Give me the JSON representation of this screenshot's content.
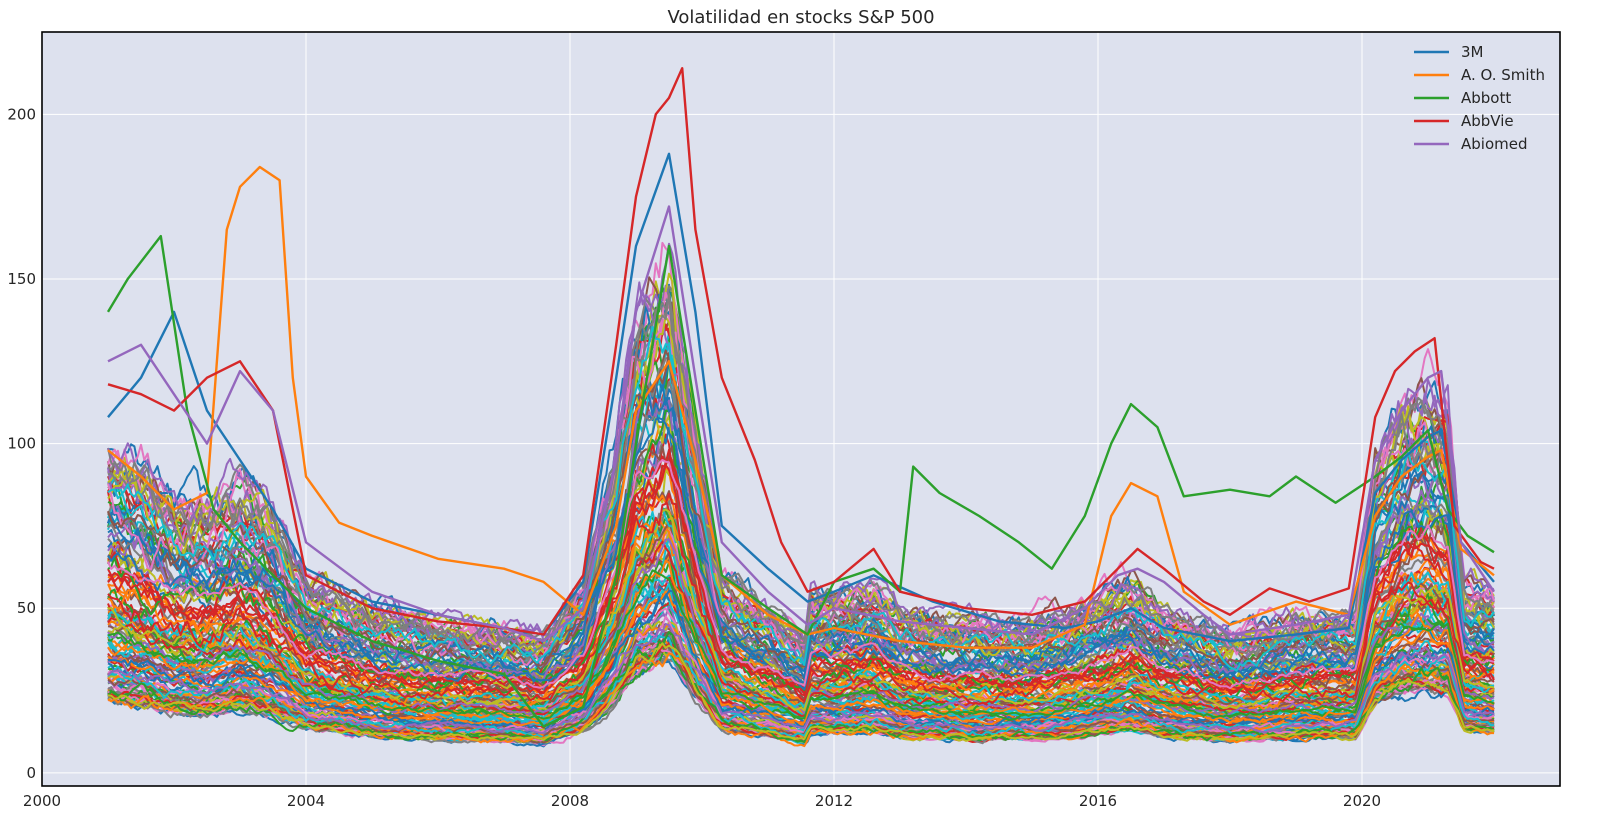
{
  "chart_data": {
    "type": "line",
    "title": "Volatilidad en stocks S&P 500",
    "xlabel": "",
    "ylabel": "",
    "xlim": [
      2000,
      2023
    ],
    "ylim": [
      -4,
      225
    ],
    "xticks": [
      2000,
      2004,
      2008,
      2012,
      2016,
      2020
    ],
    "xtick_labels": [
      "2000",
      "2004",
      "2008",
      "2012",
      "2016",
      "2020"
    ],
    "yticks": [
      0,
      50,
      100,
      150,
      200
    ],
    "ytick_labels": [
      "0",
      "50",
      "100",
      "150",
      "200"
    ],
    "grid": true,
    "legend_position": "top-right",
    "colors": {
      "plot_bg": "#dde1ee",
      "grid": "#ffffff",
      "frame": "#000000",
      "palette": [
        "#1f77b4",
        "#ff7f0e",
        "#2ca02c",
        "#d62728",
        "#9467bd",
        "#8c564b",
        "#e377c2",
        "#7f7f7f",
        "#bcbd22",
        "#17becf"
      ]
    },
    "series": [
      {
        "name": "3M",
        "color": "#1f77b4",
        "x": [
          2001.0,
          2001.5,
          2002.0,
          2002.5,
          2003.0,
          2003.5,
          2004.0,
          2005.0,
          2006.0,
          2007.0,
          2007.6,
          2008.2,
          2008.7,
          2009.0,
          2009.5,
          2009.9,
          2010.3,
          2011.0,
          2011.6,
          2012.0,
          2012.6,
          2013.5,
          2014.5,
          2015.5,
          2016.0,
          2016.5,
          2017.0,
          2018.0,
          2019.0,
          2019.8,
          2020.2,
          2020.6,
          2021.0,
          2021.2,
          2021.5,
          2022.0
        ],
        "y": [
          108.0,
          120.0,
          140.0,
          110.0,
          95.0,
          80.0,
          62.0,
          52.0,
          48.0,
          44.0,
          42.0,
          58.0,
          120.0,
          160.0,
          188.0,
          140.0,
          75.0,
          62.0,
          52.0,
          55.0,
          60.0,
          52.0,
          46.0,
          44.0,
          46.0,
          50.0,
          44.0,
          40.0,
          42.0,
          44.0,
          85.0,
          95.0,
          102.0,
          104.0,
          70.0,
          58.0
        ]
      },
      {
        "name": "A. O. Smith",
        "color": "#ff7f0e",
        "x": [
          2001.0,
          2001.5,
          2002.0,
          2002.5,
          2002.8,
          2003.0,
          2003.3,
          2003.6,
          2003.8,
          2004.0,
          2004.5,
          2005.0,
          2006.0,
          2007.0,
          2007.6,
          2008.2,
          2008.7,
          2009.0,
          2009.5,
          2009.9,
          2010.3,
          2011.0,
          2011.6,
          2012.0,
          2013.0,
          2014.0,
          2015.0,
          2015.8,
          2016.2,
          2016.5,
          2016.9,
          2017.3,
          2018.0,
          2019.0,
          2019.8,
          2020.2,
          2020.6,
          2021.0,
          2021.2,
          2021.5,
          2022.0
        ],
        "y": [
          98.0,
          90.0,
          80.0,
          85.0,
          165.0,
          178.0,
          184.0,
          180.0,
          120.0,
          90.0,
          76.0,
          72.0,
          65.0,
          62.0,
          58.0,
          48.0,
          75.0,
          110.0,
          125.0,
          95.0,
          60.0,
          48.0,
          42.0,
          44.0,
          40.0,
          38.0,
          38.0,
          45.0,
          78.0,
          88.0,
          84.0,
          55.0,
          45.0,
          52.0,
          48.0,
          78.0,
          90.0,
          96.0,
          98.0,
          68.0,
          60.0
        ]
      },
      {
        "name": "Abbott",
        "color": "#2ca02c",
        "x": [
          2001.0,
          2001.3,
          2001.8,
          2002.2,
          2002.6,
          2003.0,
          2003.5,
          2004.0,
          2005.0,
          2006.0,
          2007.0,
          2007.6,
          2008.2,
          2008.7,
          2009.0,
          2009.5,
          2009.9,
          2010.3,
          2011.0,
          2011.6,
          2012.0,
          2012.6,
          2013.0,
          2013.2,
          2013.6,
          2014.2,
          2014.8,
          2015.3,
          2015.8,
          2016.2,
          2016.5,
          2016.9,
          2017.3,
          2018.0,
          2018.6,
          2019.0,
          2019.6,
          2020.2,
          2020.6,
          2021.0,
          2021.3,
          2021.6,
          2022.0
        ],
        "y": [
          140.0,
          150.0,
          163.0,
          110.0,
          80.0,
          70.0,
          60.0,
          50.0,
          40.0,
          34.0,
          30.0,
          14.0,
          20.0,
          60.0,
          100.0,
          160.0,
          110.0,
          60.0,
          50.0,
          42.0,
          58.0,
          62.0,
          55.0,
          93.0,
          85.0,
          78.0,
          70.0,
          62.0,
          78.0,
          100.0,
          112.0,
          105.0,
          84.0,
          86.0,
          84.0,
          90.0,
          82.0,
          90.0,
          96.0,
          104.0,
          80.0,
          72.0,
          67.0
        ]
      },
      {
        "name": "AbbVie",
        "color": "#d62728",
        "x": [
          2001.0,
          2001.5,
          2002.0,
          2002.5,
          2003.0,
          2003.5,
          2004.0,
          2005.0,
          2006.0,
          2007.0,
          2007.6,
          2008.2,
          2008.7,
          2009.0,
          2009.3,
          2009.5,
          2009.7,
          2009.9,
          2010.3,
          2010.8,
          2011.2,
          2011.6,
          2012.0,
          2012.6,
          2013.0,
          2014.0,
          2015.0,
          2015.8,
          2016.2,
          2016.6,
          2017.0,
          2017.6,
          2018.0,
          2018.6,
          2019.2,
          2019.8,
          2020.2,
          2020.5,
          2020.8,
          2021.1,
          2021.4,
          2021.8,
          2022.0
        ],
        "y": [
          118.0,
          115.0,
          110.0,
          120.0,
          125.0,
          110.0,
          60.0,
          50.0,
          46.0,
          44.0,
          42.0,
          60.0,
          130.0,
          175.0,
          200.0,
          205.0,
          214.0,
          165.0,
          120.0,
          95.0,
          70.0,
          55.0,
          58.0,
          68.0,
          55.0,
          50.0,
          48.0,
          52.0,
          60.0,
          68.0,
          62.0,
          52.0,
          48.0,
          56.0,
          52.0,
          56.0,
          108.0,
          122.0,
          128.0,
          132.0,
          75.0,
          64.0,
          62.0
        ]
      },
      {
        "name": "Abiomed",
        "color": "#9467bd",
        "x": [
          2001.0,
          2001.5,
          2002.0,
          2002.5,
          2003.0,
          2003.5,
          2004.0,
          2005.0,
          2006.0,
          2007.0,
          2007.6,
          2008.2,
          2008.7,
          2009.0,
          2009.5,
          2009.9,
          2010.3,
          2011.0,
          2011.6,
          2012.0,
          2013.0,
          2014.0,
          2015.0,
          2015.8,
          2016.3,
          2016.6,
          2017.0,
          2017.6,
          2018.0,
          2019.0,
          2019.8,
          2020.2,
          2020.6,
          2021.0,
          2021.2,
          2021.5,
          2022.0
        ],
        "y": [
          125.0,
          130.0,
          115.0,
          100.0,
          122.0,
          110.0,
          70.0,
          55.0,
          48.0,
          44.0,
          40.0,
          50.0,
          95.0,
          140.0,
          172.0,
          120.0,
          70.0,
          55.0,
          45.0,
          50.0,
          46.0,
          44.0,
          42.0,
          50.0,
          60.0,
          62.0,
          58.0,
          48.0,
          42.0,
          45.0,
          48.0,
          95.0,
          110.0,
          120.0,
          122.0,
          70.0,
          55.0
        ]
      }
    ]
  }
}
